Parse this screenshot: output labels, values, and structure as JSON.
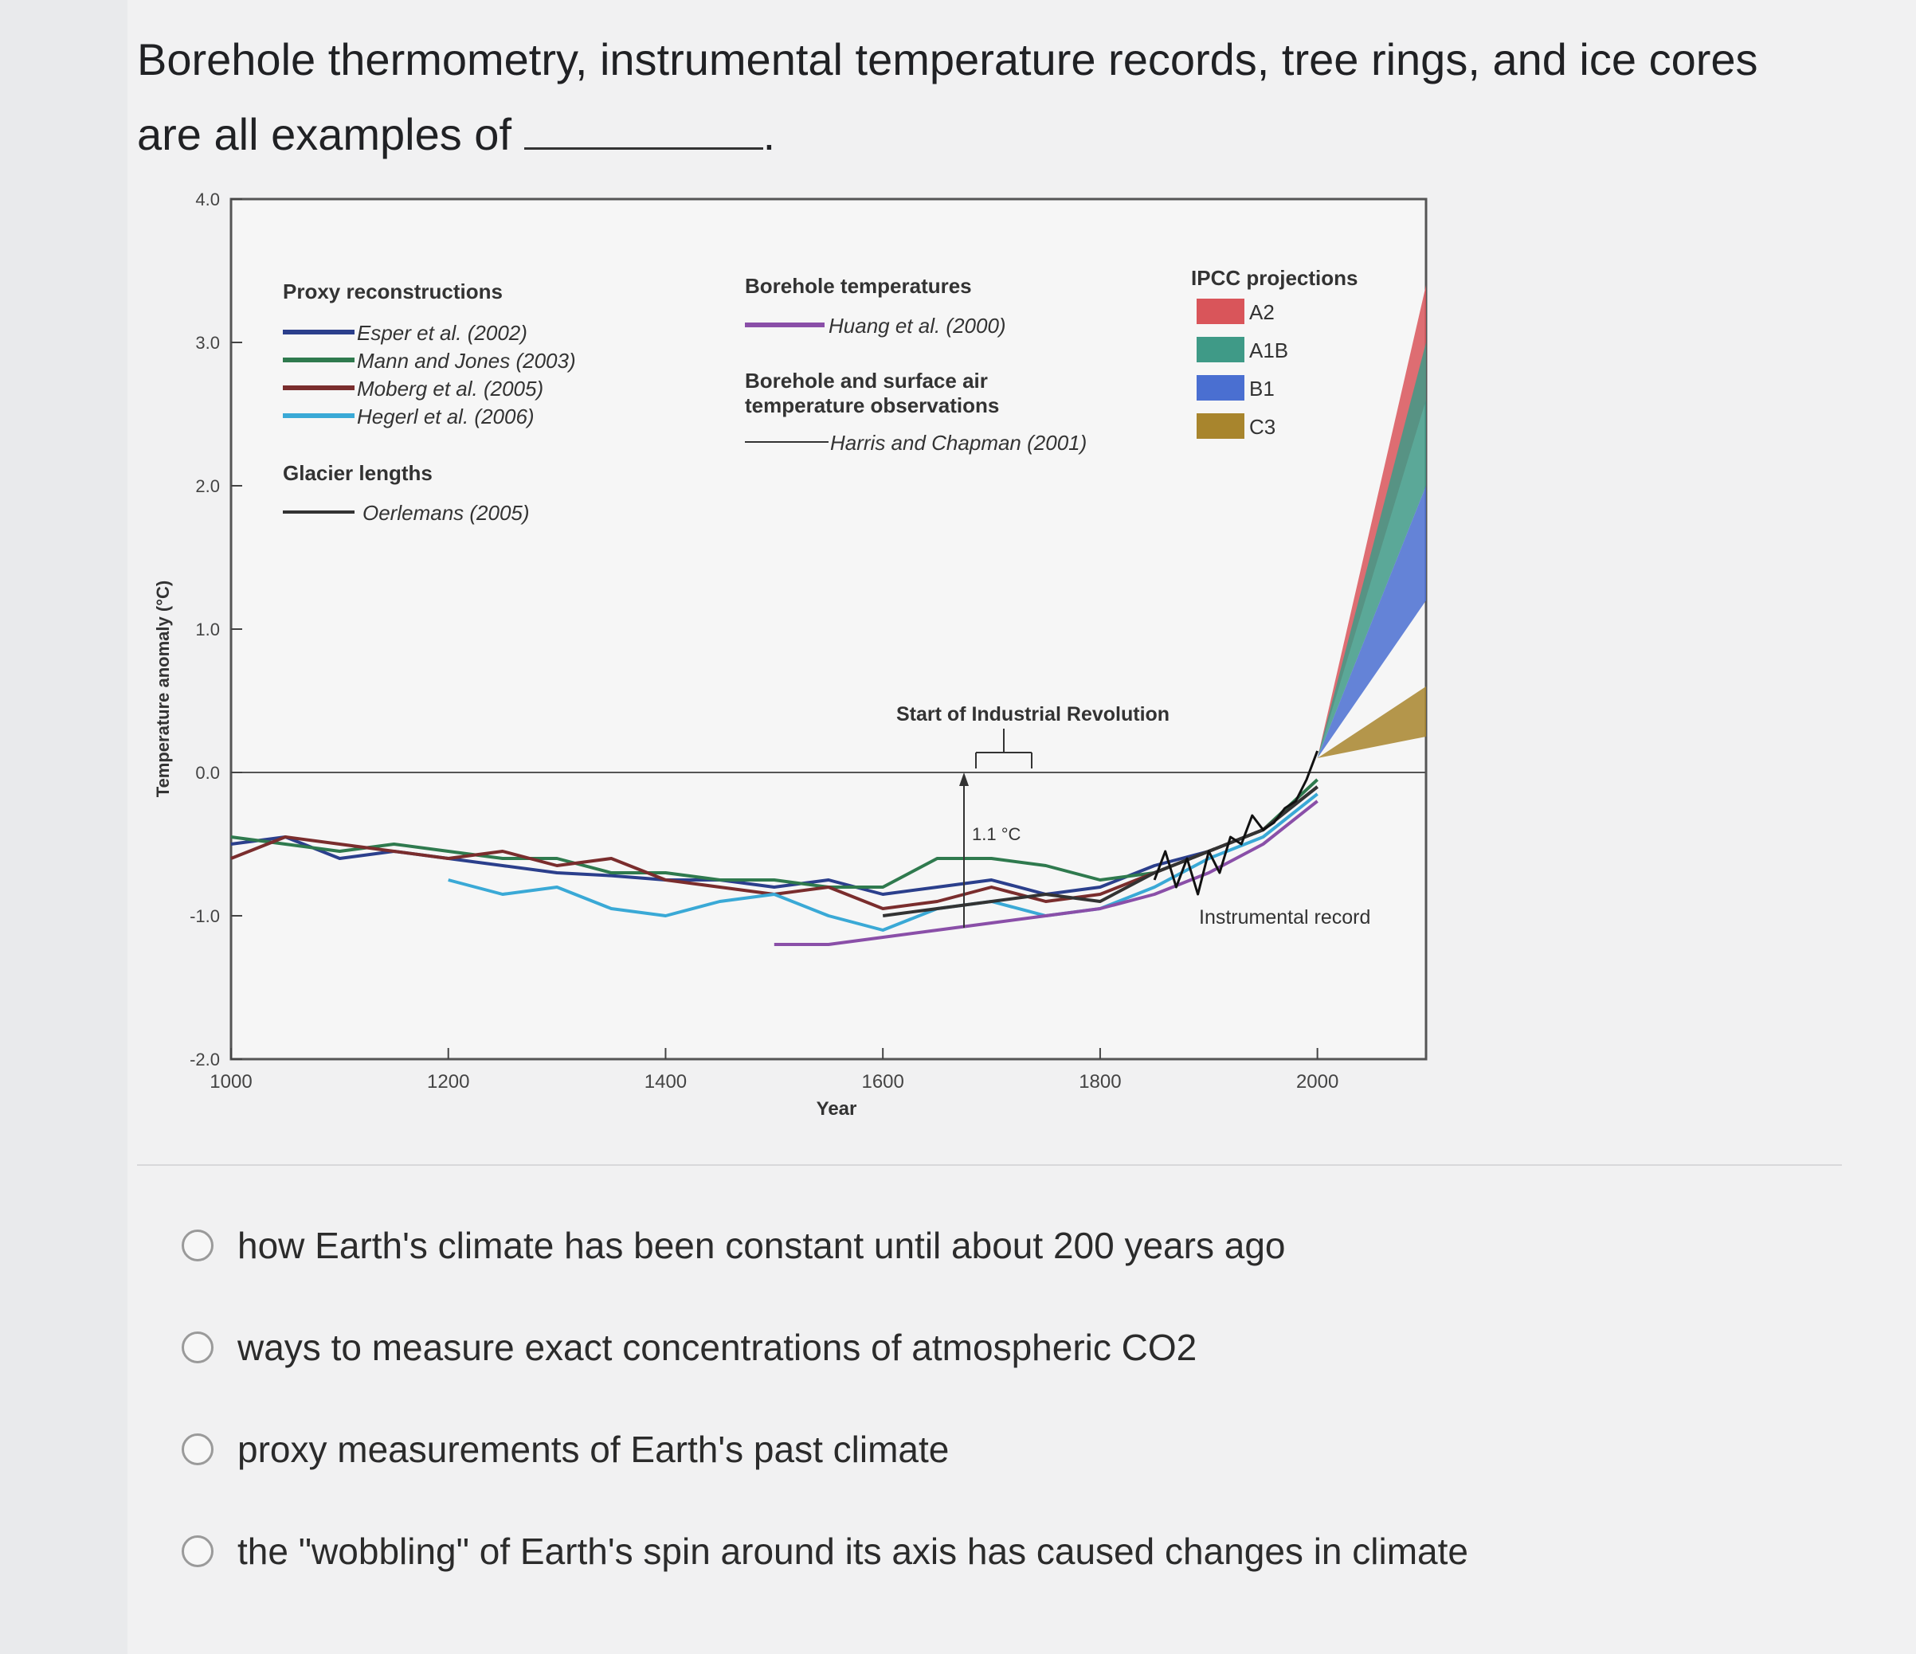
{
  "question": {
    "text_before": "Borehole thermometry, instrumental temperature records, tree rings, and ice cores are all examples of",
    "text_after": "."
  },
  "chart_data": {
    "type": "line",
    "xlabel": "Year",
    "ylabel": "Temperature anomaly (°C)",
    "xlim": [
      1000,
      2100
    ],
    "ylim": [
      -2.0,
      4.0
    ],
    "x_ticks": [
      "1000",
      "1200",
      "1400",
      "1600",
      "1800",
      "2000"
    ],
    "y_ticks": [
      "-2.0",
      "-1.0",
      "0.0",
      "1.0",
      "2.0",
      "3.0",
      "4.0"
    ],
    "legend": {
      "proxy_title": "Proxy reconstructions",
      "proxy_items": [
        {
          "name": "Esper et al. (2002)",
          "color": "#2b3f8c"
        },
        {
          "name": "Mann and Jones (2003)",
          "color": "#2f7a4e"
        },
        {
          "name": "Moberg et al. (2005)",
          "color": "#7a2d2d"
        },
        {
          "name": "Hegerl et al. (2006)",
          "color": "#3aa9d6"
        }
      ],
      "glacier_title": "Glacier lengths",
      "glacier_items": [
        {
          "name": "Oerlemans (2005)",
          "color": "#333333"
        }
      ],
      "borehole_title": "Borehole temperatures",
      "borehole_items": [
        {
          "name": "Huang et al. (2000)",
          "color": "#8a4fa8"
        }
      ],
      "obs_title_line1": "Borehole and surface air",
      "obs_title_line2": "temperature observations",
      "obs_items": [
        {
          "name": "Harris and Chapman (2001)",
          "color": "#333333"
        }
      ],
      "ipcc_title": "IPCC projections",
      "ipcc_items": [
        {
          "name": "A2",
          "color": "#d9555a"
        },
        {
          "name": "A1B",
          "color": "#3f9a87"
        },
        {
          "name": "B1",
          "color": "#4a6fd1"
        },
        {
          "name": "C3",
          "color": "#a8852d"
        }
      ]
    },
    "annotations": {
      "industrial": "Start of Industrial Revolution",
      "delta": "1.1 °C",
      "instrumental": "Instrumental record"
    },
    "series": [
      {
        "name": "Esper et al. (2002)",
        "color": "#2b3f8c",
        "x": [
          1000,
          1050,
          1100,
          1150,
          1200,
          1250,
          1300,
          1350,
          1400,
          1450,
          1500,
          1550,
          1600,
          1650,
          1700,
          1750,
          1800,
          1850,
          1900,
          1950,
          2000
        ],
        "y": [
          -0.5,
          -0.45,
          -0.6,
          -0.55,
          -0.6,
          -0.65,
          -0.7,
          -0.72,
          -0.75,
          -0.75,
          -0.8,
          -0.75,
          -0.85,
          -0.8,
          -0.75,
          -0.85,
          -0.8,
          -0.65,
          -0.55,
          -0.4,
          -0.1
        ]
      },
      {
        "name": "Mann and Jones (2003)",
        "color": "#2f7a4e",
        "x": [
          1000,
          1050,
          1100,
          1150,
          1200,
          1250,
          1300,
          1350,
          1400,
          1450,
          1500,
          1550,
          1600,
          1650,
          1700,
          1750,
          1800,
          1850,
          1900,
          1950,
          2000
        ],
        "y": [
          -0.45,
          -0.5,
          -0.55,
          -0.5,
          -0.55,
          -0.6,
          -0.6,
          -0.7,
          -0.7,
          -0.75,
          -0.75,
          -0.8,
          -0.8,
          -0.6,
          -0.6,
          -0.65,
          -0.75,
          -0.7,
          -0.55,
          -0.4,
          -0.05
        ]
      },
      {
        "name": "Moberg et al. (2005)",
        "color": "#7a2d2d",
        "x": [
          1000,
          1050,
          1100,
          1150,
          1200,
          1250,
          1300,
          1350,
          1400,
          1450,
          1500,
          1550,
          1600,
          1650,
          1700,
          1750,
          1800,
          1850,
          1900,
          1950,
          2000
        ],
        "y": [
          -0.6,
          -0.45,
          -0.5,
          -0.55,
          -0.6,
          -0.55,
          -0.65,
          -0.6,
          -0.75,
          -0.8,
          -0.85,
          -0.8,
          -0.95,
          -0.9,
          -0.8,
          -0.9,
          -0.85,
          -0.7,
          -0.55,
          -0.4,
          -0.1
        ]
      },
      {
        "name": "Hegerl et al. (2006)",
        "color": "#3aa9d6",
        "x": [
          1200,
          1250,
          1300,
          1350,
          1400,
          1450,
          1500,
          1550,
          1600,
          1650,
          1700,
          1750,
          1800,
          1850,
          1900,
          1950,
          2000
        ],
        "y": [
          -0.75,
          -0.85,
          -0.8,
          -0.95,
          -1.0,
          -0.9,
          -0.85,
          -1.0,
          -1.1,
          -0.95,
          -0.9,
          -1.0,
          -0.95,
          -0.8,
          -0.6,
          -0.45,
          -0.15
        ]
      },
      {
        "name": "Oerlemans (2005)",
        "color": "#333333",
        "x": [
          1600,
          1650,
          1700,
          1750,
          1800,
          1850,
          1900,
          1950,
          2000
        ],
        "y": [
          -1.0,
          -0.95,
          -0.9,
          -0.85,
          -0.9,
          -0.7,
          -0.55,
          -0.4,
          -0.1
        ]
      },
      {
        "name": "Huang et al. (2000)",
        "color": "#8a4fa8",
        "x": [
          1500,
          1550,
          1600,
          1650,
          1700,
          1750,
          1800,
          1850,
          1900,
          1950,
          2000
        ],
        "y": [
          -1.2,
          -1.2,
          -1.15,
          -1.1,
          -1.05,
          -1.0,
          -0.95,
          -0.85,
          -0.7,
          -0.5,
          -0.2
        ]
      },
      {
        "name": "Instrumental record",
        "color": "#111111",
        "x": [
          1850,
          1860,
          1870,
          1880,
          1890,
          1900,
          1910,
          1920,
          1930,
          1940,
          1950,
          1960,
          1970,
          1980,
          1990,
          2000
        ],
        "y": [
          -0.75,
          -0.55,
          -0.8,
          -0.6,
          -0.85,
          -0.55,
          -0.7,
          -0.45,
          -0.5,
          -0.3,
          -0.4,
          -0.35,
          -0.25,
          -0.2,
          -0.05,
          0.15
        ]
      }
    ],
    "projections": [
      {
        "name": "A2",
        "color": "#d9555a",
        "x": [
          2000,
          2100
        ],
        "low": [
          0.1,
          2.6
        ],
        "high": [
          0.1,
          3.4
        ]
      },
      {
        "name": "A1B",
        "color": "#3f9a87",
        "x": [
          2000,
          2100
        ],
        "low": [
          0.1,
          2.0
        ],
        "high": [
          0.1,
          3.0
        ]
      },
      {
        "name": "B1",
        "color": "#4a6fd1",
        "x": [
          2000,
          2100
        ],
        "low": [
          0.1,
          1.2
        ],
        "high": [
          0.1,
          2.0
        ]
      },
      {
        "name": "C3",
        "color": "#a8852d",
        "x": [
          2000,
          2100
        ],
        "low": [
          0.1,
          0.25
        ],
        "high": [
          0.1,
          0.6
        ]
      }
    ]
  },
  "answers": [
    "how Earth's climate has been constant until about 200 years ago",
    "ways to measure exact concentrations of atmospheric CO2",
    "proxy measurements of Earth's past climate",
    "the \"wobbling\" of Earth's spin around its axis has caused changes in climate"
  ]
}
